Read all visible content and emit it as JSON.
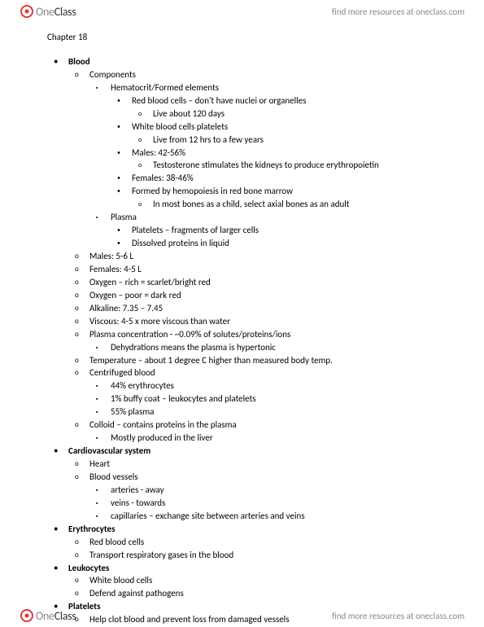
{
  "brand": {
    "one": "One",
    "class": "Class"
  },
  "resources_text": "find more resources at oneclass.com",
  "chapter": "Chapter 18",
  "outline": [
    {
      "label": "Blood",
      "bold": true,
      "children": [
        {
          "label": "Components",
          "children": [
            {
              "label": "Hematocrit/Formed elements",
              "children": [
                {
                  "label": "Red blood cells – don't have nuclei or organelles",
                  "children": [
                    {
                      "label": "Live about 120 days"
                    }
                  ]
                },
                {
                  "label": "White blood cells platelets",
                  "children": [
                    {
                      "label": "Live from 12 hrs to a few years"
                    }
                  ]
                },
                {
                  "label": "Males: 42-56%",
                  "children": [
                    {
                      "label": "Testosterone stimulates the kidneys to produce erythropoietin"
                    }
                  ]
                },
                {
                  "label": "Females: 38-46%"
                },
                {
                  "label": "Formed by hemopoiesis in red bone marrow",
                  "children": [
                    {
                      "label": "In most bones as a child, select axial bones as an adult"
                    }
                  ]
                }
              ]
            },
            {
              "label": "Plasma",
              "children": [
                {
                  "label": "Platelets – fragments of larger cells"
                },
                {
                  "label": "Dissolved proteins in liquid"
                }
              ]
            }
          ]
        },
        {
          "label": "Males: 5-6 L"
        },
        {
          "label": "Females: 4-5 L"
        },
        {
          "label": "Oxygen – rich = scarlet/bright red"
        },
        {
          "label": "Oxygen – poor = dark red"
        },
        {
          "label": "Alkaline: 7.35 – 7.45"
        },
        {
          "label": "Viscous: 4-5 x more viscous than water"
        },
        {
          "label": "Plasma concentration - ~0.09% of solutes/proteins/ions",
          "children": [
            {
              "label": "Dehydrations means the plasma is hypertonic"
            }
          ]
        },
        {
          "label": "Temperature – about 1 degree C higher than measured body temp."
        },
        {
          "label": "Centrifuged blood",
          "children": [
            {
              "label": "44% erythrocytes"
            },
            {
              "label": "1% buffy coat – leukocytes and platelets"
            },
            {
              "label": "55% plasma"
            }
          ]
        },
        {
          "label": "Colloid – contains proteins in the plasma",
          "children": [
            {
              "label": "Mostly produced in the liver"
            }
          ]
        }
      ]
    },
    {
      "label": "Cardiovascular system",
      "bold": true,
      "children": [
        {
          "label": "Heart"
        },
        {
          "label": "Blood vessels",
          "children": [
            {
              "label": "arteries - away"
            },
            {
              "label": "veins - towards"
            },
            {
              "label": "capillaries – exchange site between arteries and veins"
            }
          ]
        }
      ]
    },
    {
      "label": "Erythrocytes",
      "bold": true,
      "children": [
        {
          "label": "Red blood cells"
        },
        {
          "label": "Transport respiratory gases in the blood"
        }
      ]
    },
    {
      "label": "Leukocytes",
      "bold": true,
      "children": [
        {
          "label": "White blood cells"
        },
        {
          "label": "Defend against pathogens"
        }
      ]
    },
    {
      "label": "Platelets",
      "bold": true,
      "children": [
        {
          "label": "Help clot blood and prevent loss from damaged vessels"
        }
      ]
    }
  ]
}
